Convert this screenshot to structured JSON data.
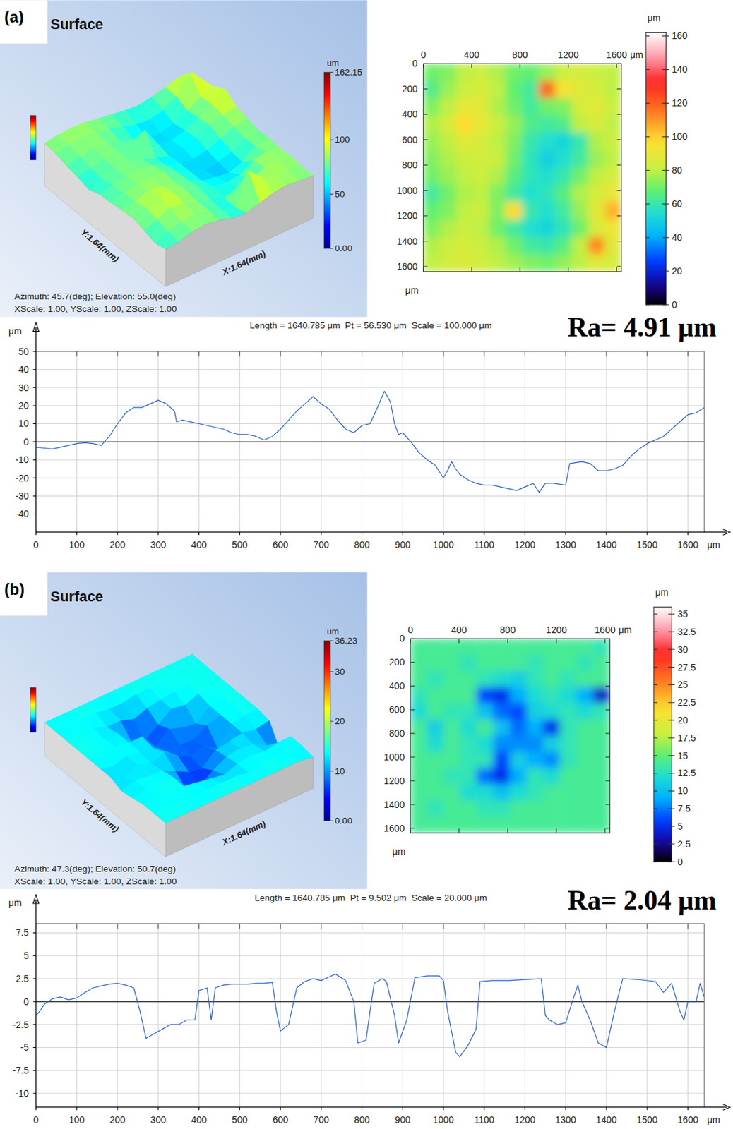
{
  "chart_data": [
    {
      "type": "surface3d",
      "panel_label": "(a)",
      "title": "Surface",
      "x_label": "X:1.64(mm)",
      "y_label": "Y:1.64(mm)",
      "annotations": [
        "Azimuth: 45.7(deg); Elevation: 55.0(deg)",
        "XScale: 1.00, YScale: 1.00, ZScale: 1.00"
      ],
      "colorbar": {
        "label": "um",
        "range": [
          0,
          162.15
        ],
        "ticks": [
          {
            "value": 0,
            "label": "0.00"
          },
          50,
          100,
          162.15
        ]
      },
      "z": [
        [
          70,
          72,
          80,
          82,
          78,
          70,
          68,
          75,
          82,
          85,
          82,
          80
        ],
        [
          65,
          75,
          82,
          85,
          80,
          68,
          62,
          118,
          95,
          88,
          84,
          80
        ],
        [
          72,
          80,
          90,
          88,
          78,
          70,
          62,
          70,
          72,
          85,
          88,
          82
        ],
        [
          78,
          85,
          98,
          90,
          82,
          75,
          65,
          62,
          65,
          80,
          85,
          80
        ],
        [
          75,
          80,
          88,
          85,
          80,
          72,
          60,
          55,
          52,
          60,
          78,
          82
        ],
        [
          72,
          78,
          82,
          84,
          82,
          70,
          58,
          50,
          55,
          62,
          75,
          80
        ],
        [
          70,
          75,
          80,
          82,
          78,
          66,
          58,
          55,
          60,
          70,
          80,
          85
        ],
        [
          62,
          70,
          78,
          80,
          72,
          62,
          55,
          58,
          66,
          78,
          85,
          90
        ],
        [
          68,
          72,
          80,
          82,
          72,
          98,
          60,
          55,
          62,
          75,
          88,
          105
        ],
        [
          72,
          78,
          82,
          80,
          70,
          62,
          55,
          52,
          58,
          70,
          85,
          92
        ],
        [
          78,
          82,
          85,
          82,
          78,
          70,
          62,
          60,
          66,
          80,
          112,
          88
        ],
        [
          80,
          84,
          86,
          84,
          80,
          76,
          72,
          70,
          74,
          80,
          88,
          85
        ]
      ]
    },
    {
      "type": "heatmap",
      "x_label": "μm",
      "y_label": "μm",
      "xlim": [
        0,
        1640
      ],
      "ylim": [
        0,
        1640
      ],
      "xticks": [
        0,
        400,
        800,
        1200,
        1600
      ],
      "yticks": [
        0,
        200,
        400,
        600,
        800,
        1000,
        1200,
        1400,
        1600
      ],
      "colorbar": {
        "label": "μm",
        "range": [
          0,
          162
        ],
        "ticks": [
          0,
          20,
          40,
          60,
          80,
          100,
          120,
          140,
          160
        ]
      },
      "cells": [
        [
          70,
          72,
          80,
          82,
          78,
          70,
          68,
          75,
          82,
          85,
          82,
          80
        ],
        [
          65,
          75,
          82,
          85,
          80,
          68,
          62,
          118,
          95,
          88,
          84,
          80
        ],
        [
          72,
          80,
          90,
          88,
          78,
          70,
          62,
          70,
          72,
          85,
          88,
          82
        ],
        [
          78,
          85,
          98,
          90,
          82,
          75,
          65,
          62,
          65,
          80,
          85,
          80
        ],
        [
          75,
          80,
          88,
          85,
          80,
          72,
          60,
          55,
          52,
          60,
          78,
          82
        ],
        [
          72,
          78,
          82,
          84,
          82,
          70,
          58,
          50,
          55,
          62,
          75,
          80
        ],
        [
          70,
          75,
          80,
          82,
          78,
          66,
          58,
          55,
          60,
          70,
          80,
          85
        ],
        [
          62,
          70,
          78,
          80,
          72,
          62,
          55,
          58,
          66,
          78,
          85,
          90
        ],
        [
          68,
          72,
          80,
          82,
          72,
          98,
          60,
          55,
          62,
          75,
          88,
          105
        ],
        [
          72,
          78,
          82,
          80,
          70,
          62,
          55,
          52,
          58,
          70,
          85,
          92
        ],
        [
          78,
          82,
          85,
          82,
          78,
          70,
          62,
          60,
          66,
          80,
          112,
          88
        ],
        [
          80,
          84,
          86,
          84,
          80,
          76,
          72,
          70,
          74,
          80,
          88,
          85
        ]
      ]
    },
    {
      "type": "line",
      "title": "Length = 1640.785 μm  Pt = 56.530 μm  Scale = 100.000 μm",
      "annotations": [
        "Ra= 4.91 μm"
      ],
      "x_label": "μm",
      "y_label": "μm",
      "xlim": [
        0,
        1640
      ],
      "ylim": [
        -50,
        50
      ],
      "xticks": [
        0,
        100,
        200,
        300,
        400,
        500,
        600,
        700,
        800,
        900,
        1000,
        1100,
        1200,
        1300,
        1400,
        1500,
        1600
      ],
      "yticks": [
        -40,
        -30,
        -20,
        -10,
        0,
        10,
        20,
        30,
        40,
        50
      ],
      "grid": true,
      "color": "#2a62c8",
      "x": [
        0,
        20,
        40,
        60,
        80,
        100,
        120,
        140,
        160,
        180,
        200,
        220,
        240,
        260,
        280,
        300,
        320,
        340,
        345,
        360,
        380,
        400,
        420,
        440,
        460,
        480,
        500,
        520,
        540,
        560,
        580,
        600,
        620,
        640,
        660,
        680,
        700,
        720,
        740,
        760,
        780,
        800,
        820,
        840,
        855,
        870,
        880,
        890,
        900,
        920,
        940,
        960,
        980,
        1000,
        1010,
        1020,
        1030,
        1040,
        1060,
        1080,
        1100,
        1120,
        1140,
        1160,
        1180,
        1200,
        1220,
        1235,
        1250,
        1270,
        1300,
        1310,
        1340,
        1360,
        1380,
        1400,
        1420,
        1440,
        1460,
        1480,
        1500,
        1520,
        1540,
        1560,
        1580,
        1600,
        1620,
        1640
      ],
      "values": [
        -3,
        -3.5,
        -4,
        -3,
        -2,
        -1,
        -0.5,
        -1,
        -2,
        3,
        10,
        16,
        19,
        19,
        21,
        23,
        21,
        17,
        11,
        12,
        11,
        10,
        9,
        8,
        7,
        5,
        4,
        4,
        3,
        1,
        3,
        7,
        12,
        17,
        21,
        25,
        21,
        18,
        12,
        7,
        5,
        9,
        10,
        20,
        28,
        22,
        10,
        4,
        5,
        0,
        -6,
        -10,
        -13,
        -20,
        -16,
        -11,
        -15,
        -18,
        -21,
        -23,
        -24,
        -24,
        -25,
        -26,
        -27,
        -25,
        -23,
        -28,
        -23,
        -23,
        -24,
        -12,
        -11,
        -12,
        -16,
        -16,
        -15,
        -13,
        -8,
        -4,
        -1,
        1,
        3,
        7,
        11,
        15,
        16,
        19
      ]
    },
    {
      "type": "surface3d",
      "panel_label": "(b)",
      "title": "Surface",
      "x_label": "X:1.64(mm)",
      "y_label": "Y:1.64(mm)",
      "annotations": [
        "Azimuth: 47.3(deg); Elevation: 50.7(deg)",
        "XScale: 1.00, YScale: 1.00, ZScale: 1.00"
      ],
      "colorbar": {
        "label": "um",
        "range": [
          0,
          36.23
        ],
        "ticks": [
          {
            "value": 0,
            "label": "0.00"
          },
          10,
          20,
          30,
          36.23
        ]
      },
      "z": [
        [
          14,
          14,
          14,
          14,
          14,
          14,
          14,
          14,
          14,
          14,
          14,
          13
        ],
        [
          14,
          14,
          14,
          13,
          14,
          14,
          14,
          13,
          14,
          14,
          13,
          14
        ],
        [
          14,
          13,
          14,
          14,
          13,
          12,
          11,
          13,
          14,
          13,
          14,
          14
        ],
        [
          13,
          14,
          14,
          14,
          6,
          5,
          9,
          12,
          13,
          12,
          9,
          4
        ],
        [
          12,
          14,
          13,
          13,
          10,
          7,
          6,
          11,
          12,
          13,
          12,
          13
        ],
        [
          14,
          11,
          14,
          12,
          14,
          10,
          7,
          9,
          5,
          13,
          14,
          14
        ],
        [
          14,
          12,
          14,
          13,
          12,
          8,
          8,
          8,
          11,
          13,
          14,
          14
        ],
        [
          14,
          14,
          14,
          13,
          13,
          6,
          11,
          9,
          8,
          13,
          14,
          14
        ],
        [
          14,
          14,
          13,
          13,
          7,
          5,
          9,
          13,
          12,
          14,
          14,
          14
        ],
        [
          14,
          14,
          14,
          12,
          12,
          10,
          12,
          13,
          14,
          14,
          14,
          14
        ],
        [
          14,
          13,
          14,
          14,
          13,
          13,
          14,
          14,
          14,
          14,
          14,
          14
        ],
        [
          14,
          14,
          14,
          14,
          14,
          14,
          14,
          14,
          14,
          14,
          14,
          14
        ]
      ]
    },
    {
      "type": "heatmap",
      "x_label": "μm",
      "y_label": "μm",
      "xlim": [
        0,
        1640
      ],
      "ylim": [
        0,
        1640
      ],
      "xticks": [
        0,
        400,
        800,
        1200,
        1600
      ],
      "yticks": [
        0,
        200,
        400,
        600,
        800,
        1000,
        1200,
        1400,
        1600
      ],
      "colorbar": {
        "label": "μm",
        "range": [
          0,
          36
        ],
        "ticks": [
          0,
          2.5,
          5,
          7.5,
          10,
          12.5,
          15,
          17.5,
          20,
          22.5,
          25,
          27.5,
          30,
          32.5,
          35
        ]
      },
      "cells": [
        [
          14,
          14,
          14,
          14,
          14,
          14,
          14,
          14,
          14,
          14,
          14,
          13
        ],
        [
          14,
          14,
          14,
          13,
          14,
          14,
          14,
          13,
          14,
          14,
          13,
          14
        ],
        [
          14,
          13,
          14,
          14,
          13,
          12,
          11,
          13,
          14,
          13,
          14,
          14
        ],
        [
          13,
          14,
          14,
          14,
          6,
          5,
          9,
          12,
          13,
          12,
          9,
          4
        ],
        [
          12,
          14,
          13,
          13,
          10,
          7,
          6,
          11,
          12,
          13,
          12,
          13
        ],
        [
          14,
          11,
          14,
          12,
          14,
          10,
          7,
          9,
          5,
          13,
          14,
          14
        ],
        [
          14,
          12,
          14,
          13,
          12,
          8,
          8,
          8,
          11,
          13,
          14,
          14
        ],
        [
          14,
          14,
          14,
          13,
          13,
          6,
          11,
          9,
          8,
          13,
          14,
          14
        ],
        [
          14,
          14,
          13,
          13,
          7,
          5,
          9,
          13,
          12,
          14,
          14,
          14
        ],
        [
          14,
          14,
          14,
          12,
          12,
          10,
          12,
          13,
          14,
          14,
          14,
          14
        ],
        [
          14,
          13,
          14,
          14,
          13,
          13,
          14,
          14,
          14,
          14,
          14,
          14
        ],
        [
          14,
          14,
          14,
          14,
          14,
          14,
          14,
          14,
          14,
          14,
          14,
          14
        ]
      ]
    },
    {
      "type": "line",
      "title": "Length = 1640.785 μm  Pt = 9.502 μm  Scale = 20.000 μm",
      "annotations": [
        "Ra= 2.04 μm"
      ],
      "x_label": "μm",
      "y_label": "μm",
      "xlim": [
        0,
        1640
      ],
      "ylim": [
        -11.5,
        8.5
      ],
      "xticks": [
        0,
        100,
        200,
        300,
        400,
        500,
        600,
        700,
        800,
        900,
        1000,
        1100,
        1200,
        1300,
        1400,
        1500,
        1600
      ],
      "yticks": [
        -10,
        -7.5,
        -5,
        -2.5,
        0,
        2.5,
        5,
        7.5
      ],
      "grid": true,
      "color": "#2a62c8",
      "x": [
        0,
        10,
        20,
        40,
        60,
        80,
        100,
        120,
        140,
        160,
        180,
        200,
        220,
        240,
        255,
        270,
        290,
        310,
        330,
        350,
        370,
        390,
        400,
        420,
        430,
        440,
        460,
        480,
        500,
        520,
        540,
        560,
        580,
        590,
        600,
        620,
        640,
        660,
        680,
        700,
        720,
        735,
        760,
        780,
        790,
        810,
        820,
        830,
        850,
        860,
        880,
        890,
        910,
        930,
        960,
        990,
        1000,
        1010,
        1030,
        1040,
        1060,
        1080,
        1090,
        1120,
        1160,
        1200,
        1240,
        1250,
        1260,
        1280,
        1300,
        1320,
        1330,
        1340,
        1360,
        1380,
        1400,
        1420,
        1440,
        1480,
        1520,
        1540,
        1560,
        1580,
        1590,
        1600,
        1620,
        1630,
        1640
      ],
      "values": [
        -1.5,
        -1,
        -0.3,
        0.3,
        0.5,
        0.2,
        0.4,
        1,
        1.5,
        1.7,
        1.9,
        2,
        1.8,
        1.5,
        -1,
        -4,
        -3.5,
        -3,
        -2.5,
        -2.5,
        -2,
        -2,
        1.2,
        1.5,
        -2,
        1.5,
        1.8,
        1.9,
        1.9,
        1.9,
        2,
        2,
        2.1,
        -1,
        -3.2,
        -2.5,
        1.5,
        2.2,
        2.5,
        2.3,
        2.7,
        3,
        2.3,
        0,
        -4.5,
        -4.2,
        -1,
        2,
        2.5,
        2.2,
        -1.5,
        -4.5,
        -2,
        2.6,
        2.8,
        2.8,
        2.3,
        -1,
        -5.5,
        -6,
        -4.8,
        -3,
        2.2,
        2.3,
        2.3,
        2.4,
        2.5,
        -1.5,
        -2,
        -2.5,
        -2.3,
        0.5,
        1.8,
        0,
        -2,
        -4.5,
        -5,
        -1,
        2.5,
        2.4,
        2.2,
        1,
        2,
        -1,
        -2,
        0,
        0,
        2,
        0.5
      ]
    }
  ]
}
